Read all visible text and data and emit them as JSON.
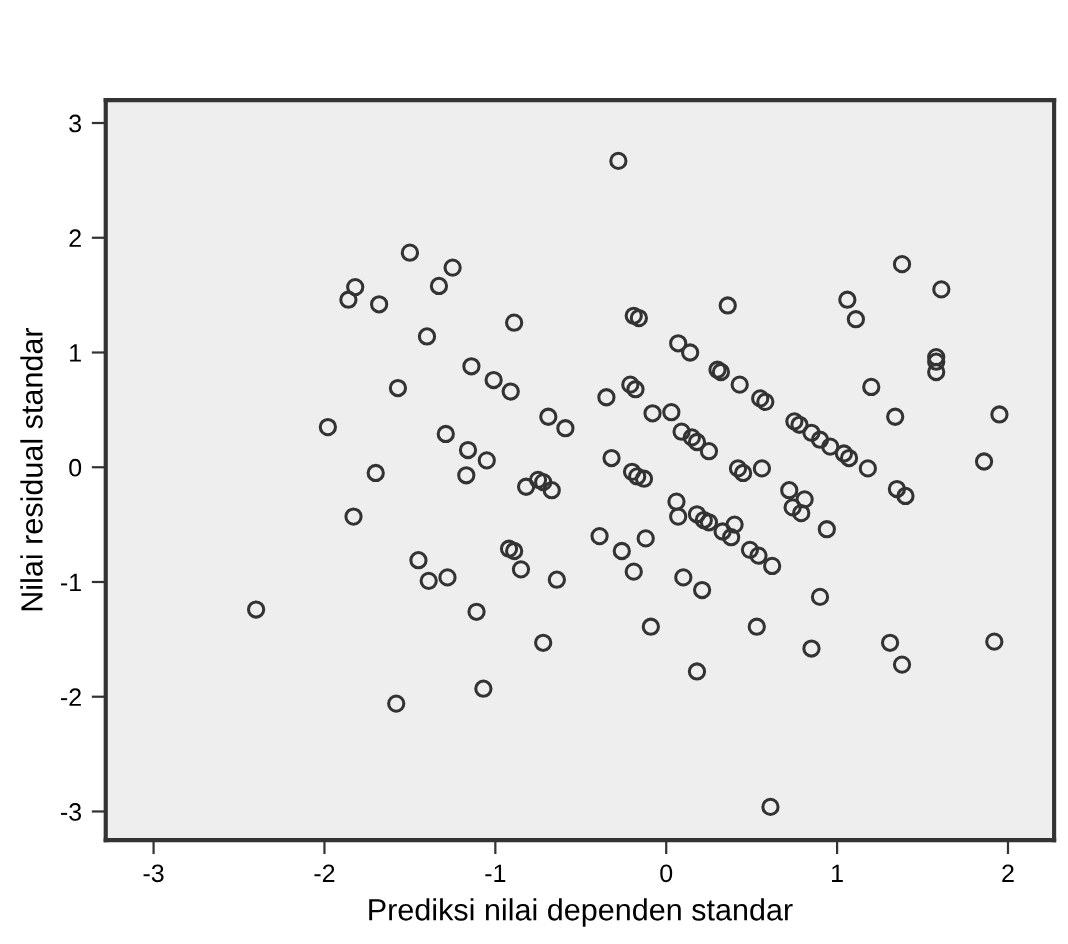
{
  "chart_data": {
    "type": "scatter",
    "xlabel": "Prediksi nilai dependen standar",
    "ylabel": "Nilai residual standar",
    "xlim": [
      -3.28,
      2.27
    ],
    "ylim": [
      -3.25,
      3.2
    ],
    "xticks": [
      -3,
      -2,
      -1,
      0,
      1,
      2
    ],
    "yticks": [
      -3,
      -2,
      -1,
      0,
      1,
      2,
      3
    ],
    "grid": false,
    "marker": "circle",
    "series": [
      {
        "color": "#333333",
        "x": [
          -0.28,
          -1.5,
          -1.25,
          -1.33,
          -1.82,
          -1.86,
          -1.68,
          -0.89,
          -1.4,
          -0.19,
          -0.16,
          -1.14,
          -1.01,
          -0.91,
          -1.57,
          -0.35,
          -0.21,
          -0.18,
          -1.98,
          -1.29,
          -1.16,
          -1.05,
          -0.69,
          -0.59,
          -0.32,
          -1.7,
          -1.17,
          -0.82,
          -0.75,
          -0.72,
          -0.67,
          -1.83,
          -0.2,
          -0.17,
          -0.39,
          -0.26,
          -0.19,
          -0.92,
          -0.89,
          -0.85,
          -0.64,
          -1.45,
          -1.39,
          -1.28,
          -1.11,
          -2.4,
          -0.72,
          -1.07,
          -1.58,
          1.38,
          1.61,
          0.36,
          1.06,
          1.11,
          0.07,
          0.14,
          0.3,
          0.32,
          0.43,
          0.55,
          0.58,
          -0.08,
          0.03,
          0.09,
          0.15,
          0.18,
          0.25,
          0.42,
          0.56,
          0.75,
          0.78,
          0.85,
          0.9,
          0.96,
          1.04,
          1.07,
          1.18,
          1.2,
          1.34,
          1.58,
          1.58,
          1.58,
          1.95,
          1.86,
          -0.13,
          0.45,
          1.35,
          1.4,
          0.72,
          0.81,
          0.74,
          0.79,
          0.06,
          0.07,
          0.18,
          0.22,
          0.25,
          0.4,
          0.33,
          0.38,
          0.49,
          0.54,
          0.62,
          0.94,
          -0.12,
          0.1,
          0.21,
          0.9,
          -0.09,
          0.53,
          0.85,
          1.31,
          1.38,
          1.92,
          0.18,
          0.61
        ],
        "values": [
          2.67,
          1.87,
          1.74,
          1.58,
          1.57,
          1.46,
          1.42,
          1.26,
          1.14,
          1.32,
          1.3,
          0.88,
          0.76,
          0.66,
          0.69,
          0.61,
          0.72,
          0.68,
          0.35,
          0.29,
          0.15,
          0.06,
          0.44,
          0.34,
          0.08,
          -0.05,
          -0.07,
          -0.17,
          -0.11,
          -0.13,
          -0.2,
          -0.43,
          -0.04,
          -0.08,
          -0.6,
          -0.73,
          -0.91,
          -0.71,
          -0.73,
          -0.89,
          -0.98,
          -0.81,
          -0.99,
          -0.96,
          -1.26,
          -1.24,
          -1.53,
          -1.93,
          -2.06,
          1.77,
          1.55,
          1.41,
          1.46,
          1.29,
          1.08,
          1.0,
          0.85,
          0.83,
          0.72,
          0.6,
          0.57,
          0.47,
          0.48,
          0.31,
          0.26,
          0.22,
          0.14,
          -0.01,
          -0.01,
          0.4,
          0.37,
          0.3,
          0.24,
          0.18,
          0.12,
          0.08,
          -0.01,
          0.7,
          0.44,
          0.96,
          0.92,
          0.83,
          0.46,
          0.05,
          -0.1,
          -0.05,
          -0.19,
          -0.25,
          -0.2,
          -0.28,
          -0.35,
          -0.4,
          -0.3,
          -0.43,
          -0.41,
          -0.46,
          -0.48,
          -0.5,
          -0.56,
          -0.61,
          -0.72,
          -0.77,
          -0.86,
          -0.54,
          -0.62,
          -0.96,
          -1.07,
          -1.13,
          -1.39,
          -1.39,
          -1.58,
          -1.53,
          -1.72,
          -1.52,
          -1.78,
          -2.96
        ]
      }
    ]
  }
}
